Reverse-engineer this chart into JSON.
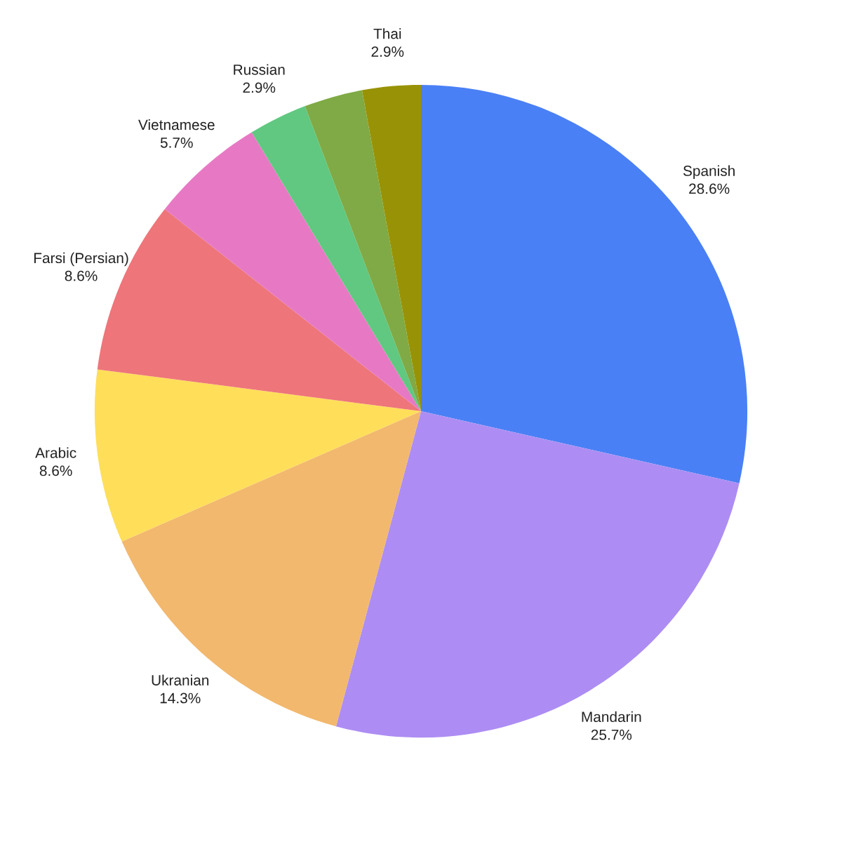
{
  "chart_data": {
    "type": "pie",
    "categories": [
      "Spanish",
      "Mandarin",
      "Ukranian",
      "Arabic",
      "Farsi (Persian)",
      "Vietnamese",
      "Russian",
      null,
      "Thai"
    ],
    "values": [
      28.6,
      25.7,
      14.3,
      8.6,
      8.6,
      5.7,
      2.9,
      2.9,
      2.9
    ],
    "value_labels": [
      "28.6%",
      "25.7%",
      "14.3%",
      "8.6%",
      "8.6%",
      "5.7%",
      "2.9%",
      null,
      "2.9%"
    ],
    "colors": [
      "#4a80f5",
      "#ad8df3",
      "#f2b86e",
      "#ffde5a",
      "#ee757a",
      "#e779c4",
      "#60c880",
      "#7faa45",
      "#989306"
    ],
    "legend": false
  }
}
